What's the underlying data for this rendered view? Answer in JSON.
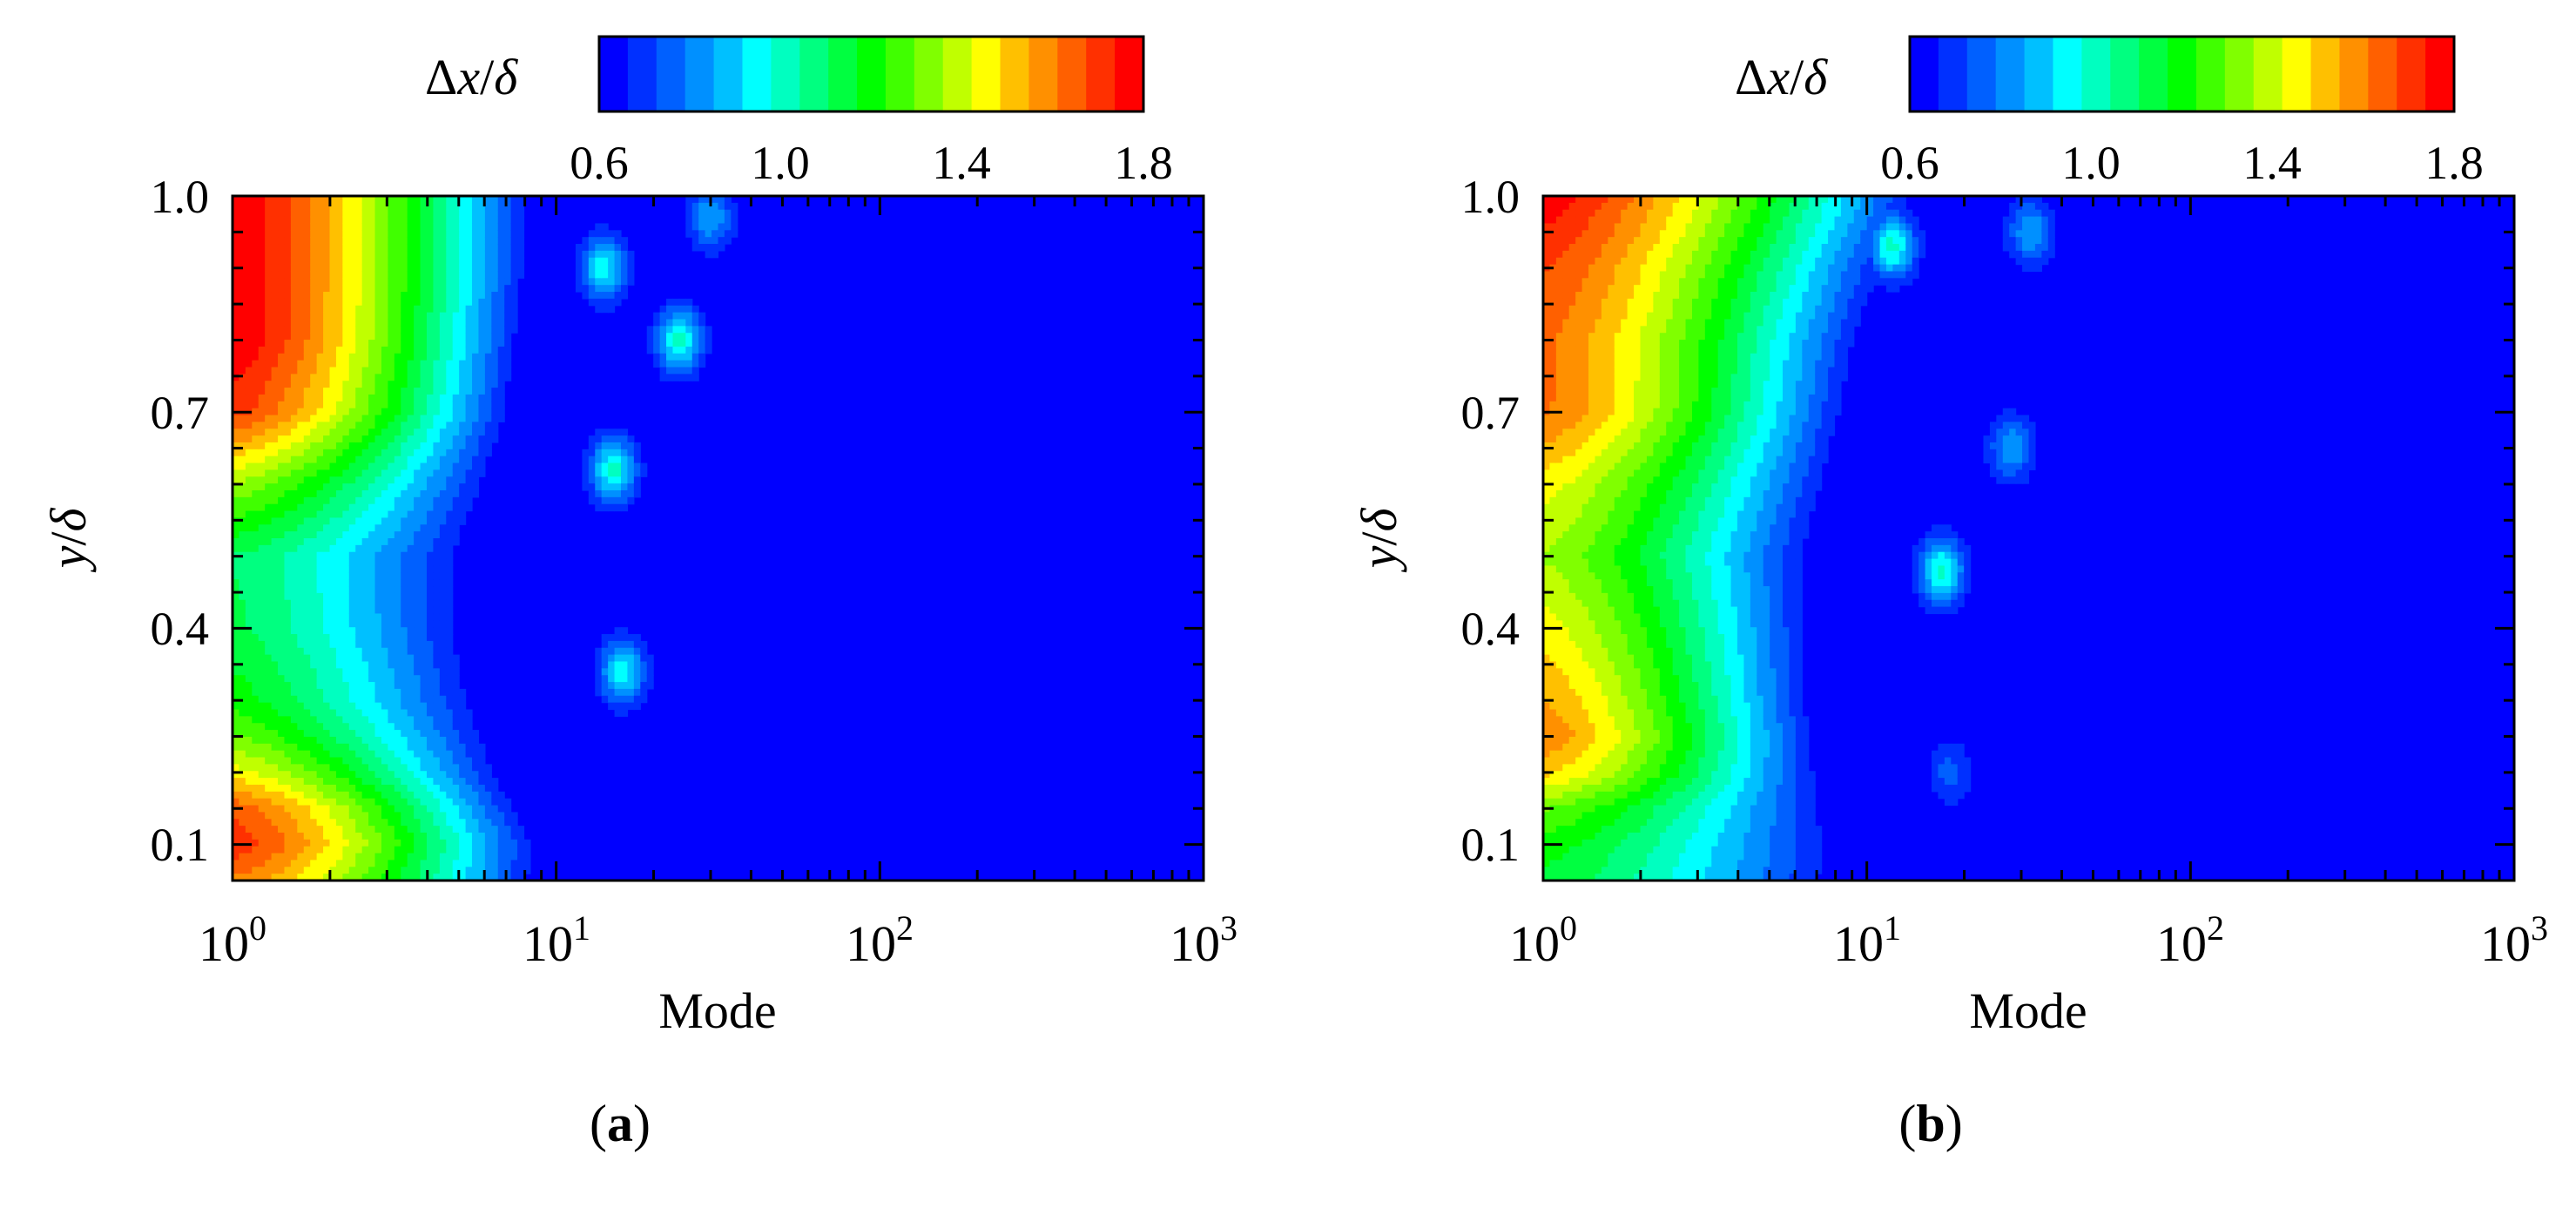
{
  "panels": [
    {
      "label_open": "(",
      "label_letter": "a",
      "label_close": ")",
      "xlabel": "Mode",
      "ylabel_var": "y",
      "ylabel_sep": "/",
      "ylabel_den": "δ",
      "cbar_title_delta": "Δ",
      "cbar_title_var": "x",
      "cbar_title_sep": "/",
      "cbar_title_den": "δ",
      "cbar_ticks": [
        "0.6",
        "1.0",
        "1.4",
        "1.8"
      ],
      "y_ticks": [
        "0.1",
        "0.4",
        "0.7",
        "1.0"
      ],
      "x_ticks": [
        {
          "base": "10",
          "exp": "0"
        },
        {
          "base": "10",
          "exp": "1"
        },
        {
          "base": "10",
          "exp": "2"
        },
        {
          "base": "10",
          "exp": "3"
        }
      ]
    },
    {
      "label_open": "(",
      "label_letter": "b",
      "label_close": ")",
      "xlabel": "Mode",
      "ylabel_var": "y",
      "ylabel_sep": "/",
      "ylabel_den": "δ",
      "cbar_title_delta": "Δ",
      "cbar_title_var": "x",
      "cbar_title_sep": "/",
      "cbar_title_den": "δ",
      "cbar_ticks": [
        "0.6",
        "1.0",
        "1.4",
        "1.8"
      ],
      "y_ticks": [
        "0.1",
        "0.4",
        "0.7",
        "1.0"
      ],
      "x_ticks": [
        {
          "base": "10",
          "exp": "0"
        },
        {
          "base": "10",
          "exp": "1"
        },
        {
          "base": "10",
          "exp": "2"
        },
        {
          "base": "10",
          "exp": "3"
        }
      ]
    }
  ],
  "chart_data": [
    {
      "type": "heatmap",
      "panel": "a",
      "xlabel": "Mode",
      "ylabel": "y/δ",
      "colorbar_label": "Δx/δ",
      "x_scale": "log",
      "xlim": [
        1,
        1000
      ],
      "ylim": [
        0.05,
        1.0
      ],
      "clim": [
        0.6,
        1.8
      ],
      "colorbar_ticks": [
        0.6,
        1.0,
        1.4,
        1.8
      ],
      "x_ticks": [
        1,
        10,
        100,
        1000
      ],
      "y_ticks": [
        0.1,
        0.4,
        0.7,
        1.0
      ],
      "colormap": [
        "#0000ff",
        "#0030ff",
        "#0060ff",
        "#0090ff",
        "#00c0ff",
        "#00ffff",
        "#00ffc0",
        "#00ff80",
        "#00ff40",
        "#00ff00",
        "#40ff00",
        "#80ff00",
        "#c0ff00",
        "#ffff00",
        "#ffc000",
        "#ff9000",
        "#ff6000",
        "#ff3000",
        "#ff0000"
      ],
      "profile_y": [
        0.05,
        0.1,
        0.15,
        0.2,
        0.25,
        0.3,
        0.4,
        0.5,
        0.6,
        0.7,
        0.8,
        0.9,
        1.0
      ],
      "profile_x0_values": [
        1.6,
        1.72,
        1.65,
        1.45,
        1.3,
        1.2,
        1.12,
        1.1,
        1.35,
        1.7,
        1.8,
        1.8,
        1.8
      ],
      "cutoff_mode_vs_y": {
        "y": [
          0.05,
          0.1,
          0.2,
          0.3,
          0.4,
          0.5,
          0.6,
          0.7,
          0.8,
          0.9,
          1.0
        ],
        "mode": [
          9,
          9,
          7,
          6,
          5.5,
          5.5,
          6.5,
          7.5,
          8,
          8.5,
          8.5
        ]
      },
      "features": [
        {
          "mode": 15,
          "y": 0.62,
          "value": 1.0
        },
        {
          "mode": 24,
          "y": 0.8,
          "value": 1.0
        },
        {
          "mode": 16,
          "y": 0.34,
          "value": 0.95
        },
        {
          "mode": 14,
          "y": 0.9,
          "value": 0.95
        },
        {
          "mode": 30,
          "y": 0.97,
          "value": 0.85
        }
      ]
    },
    {
      "type": "heatmap",
      "panel": "b",
      "xlabel": "Mode",
      "ylabel": "y/δ",
      "colorbar_label": "Δx/δ",
      "x_scale": "log",
      "xlim": [
        1,
        1000
      ],
      "ylim": [
        0.05,
        1.0
      ],
      "clim": [
        0.6,
        1.8
      ],
      "colorbar_ticks": [
        0.6,
        1.0,
        1.4,
        1.8
      ],
      "x_ticks": [
        1,
        10,
        100,
        1000
      ],
      "y_ticks": [
        0.1,
        0.4,
        0.7,
        1.0
      ],
      "colormap": [
        "#0000ff",
        "#0030ff",
        "#0060ff",
        "#0090ff",
        "#00c0ff",
        "#00ffff",
        "#00ffc0",
        "#00ff80",
        "#00ff40",
        "#00ff00",
        "#40ff00",
        "#80ff00",
        "#c0ff00",
        "#ffff00",
        "#ffc000",
        "#ff9000",
        "#ff6000",
        "#ff3000",
        "#ff0000"
      ],
      "profile_y": [
        0.05,
        0.1,
        0.15,
        0.2,
        0.25,
        0.3,
        0.4,
        0.5,
        0.6,
        0.7,
        0.8,
        0.9,
        1.0
      ],
      "profile_x0_values": [
        1.15,
        1.2,
        1.3,
        1.5,
        1.6,
        1.55,
        1.45,
        1.35,
        1.45,
        1.62,
        1.62,
        1.68,
        1.78
      ],
      "cutoff_mode_vs_y": {
        "y": [
          0.05,
          0.1,
          0.2,
          0.3,
          0.4,
          0.5,
          0.6,
          0.7,
          0.8,
          0.9,
          1.0
        ],
        "mode": [
          8.5,
          8.5,
          7.5,
          7,
          7,
          7,
          8,
          9,
          10,
          12,
          15
        ]
      },
      "features": [
        {
          "mode": 17,
          "y": 0.48,
          "value": 1.0
        },
        {
          "mode": 12,
          "y": 0.93,
          "value": 1.0
        },
        {
          "mode": 28,
          "y": 0.65,
          "value": 0.85
        },
        {
          "mode": 32,
          "y": 0.95,
          "value": 0.85
        },
        {
          "mode": 18,
          "y": 0.2,
          "value": 0.75
        }
      ]
    }
  ]
}
